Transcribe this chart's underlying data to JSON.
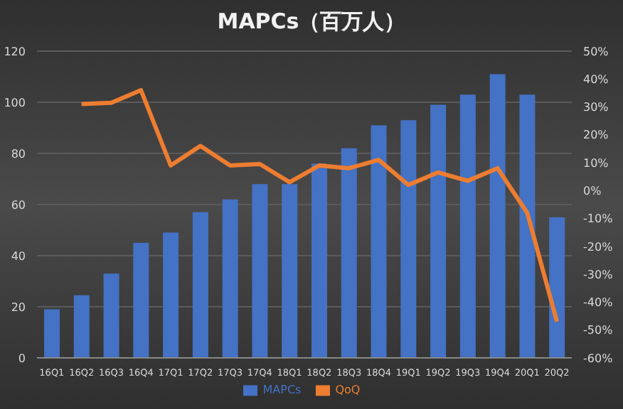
{
  "chart_data": {
    "type": "bar",
    "title": "MAPCs（百万人）",
    "categories": [
      "16Q1",
      "16Q2",
      "16Q3",
      "16Q4",
      "17Q1",
      "17Q2",
      "17Q3",
      "17Q4",
      "18Q1",
      "18Q2",
      "18Q3",
      "18Q4",
      "19Q1",
      "19Q2",
      "19Q3",
      "19Q4",
      "20Q1",
      "20Q2"
    ],
    "series": [
      {
        "name": "MAPCs",
        "color": "#4472c4",
        "values": [
          19,
          24.5,
          33,
          45,
          49,
          57,
          62,
          68,
          68,
          76,
          82,
          91,
          93,
          99,
          103,
          111,
          103,
          55
        ]
      },
      {
        "name": "QoQ",
        "type": "line",
        "axis": "y2",
        "color": "#ed7d31",
        "values": [
          null,
          31,
          31.5,
          36,
          9,
          16,
          9,
          9.5,
          3,
          9,
          8,
          11,
          2,
          6.5,
          3.5,
          8,
          -8,
          -47
        ]
      }
    ],
    "ylim": [
      0,
      120
    ],
    "yticks": [
      0,
      20,
      40,
      60,
      80,
      100,
      120
    ],
    "y2lim": [
      -60,
      50
    ],
    "y2ticks": [
      {
        "value": -60,
        "label": "-60%"
      },
      {
        "value": -50,
        "label": "-50%"
      },
      {
        "value": -40,
        "label": "-40%"
      },
      {
        "value": -30,
        "label": "-30%"
      },
      {
        "value": -20,
        "label": "-20%"
      },
      {
        "value": -10,
        "label": "-10%"
      },
      {
        "value": 0,
        "label": "0%"
      },
      {
        "value": 10,
        "label": "10%"
      },
      {
        "value": 20,
        "label": "20%"
      },
      {
        "value": 30,
        "label": "30%"
      },
      {
        "value": 40,
        "label": "40%"
      },
      {
        "value": 50,
        "label": "50%"
      }
    ],
    "grid": "y",
    "legend": "bottom",
    "marker": "none"
  }
}
